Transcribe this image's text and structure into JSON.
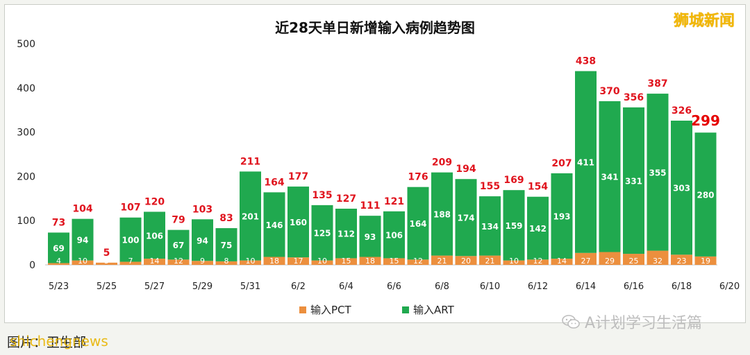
{
  "brand_label": "狮城新闻",
  "watermark_text": "A计划学习生活篇",
  "source_text": "图片：卫生部",
  "source_overlay": "shichengnews",
  "colors": {
    "art": "#20a94f",
    "pct": "#ec8f3e",
    "total_label": "#e0141e",
    "highlight_label": "#e60000"
  },
  "chart_data": {
    "type": "bar",
    "title": "近28天单日新增输入病例趋势图",
    "categories": [
      "5/23",
      "5/24",
      "5/25",
      "5/26",
      "5/27",
      "5/28",
      "5/29",
      "5/30",
      "5/31",
      "6/1",
      "6/2",
      "6/3",
      "6/4",
      "6/5",
      "6/6",
      "6/7",
      "6/8",
      "6/9",
      "6/10",
      "6/11",
      "6/12",
      "6/13",
      "6/14",
      "6/15",
      "6/16",
      "6/17",
      "6/18",
      "6/19"
    ],
    "x_tick_labels": [
      "5/23",
      "5/25",
      "5/27",
      "5/29",
      "5/31",
      "6/2",
      "6/4",
      "6/6",
      "6/8",
      "6/10",
      "6/12",
      "6/14",
      "6/16",
      "6/18",
      "6/20"
    ],
    "stacked": true,
    "series": [
      {
        "name": "输入PCT",
        "color": "#ec8f3e",
        "values": [
          4,
          10,
          5,
          7,
          14,
          12,
          9,
          8,
          10,
          18,
          17,
          10,
          15,
          18,
          15,
          12,
          21,
          20,
          21,
          10,
          12,
          14,
          27,
          29,
          25,
          32,
          23,
          19
        ]
      },
      {
        "name": "输入ART",
        "color": "#20a94f",
        "values": [
          69,
          94,
          null,
          100,
          106,
          67,
          94,
          75,
          201,
          146,
          160,
          125,
          112,
          93,
          106,
          164,
          188,
          174,
          134,
          159,
          142,
          193,
          411,
          341,
          331,
          355,
          303,
          280
        ]
      }
    ],
    "totals": [
      73,
      104,
      5,
      107,
      120,
      79,
      103,
      83,
      211,
      164,
      177,
      135,
      127,
      111,
      121,
      176,
      209,
      194,
      155,
      169,
      154,
      207,
      438,
      370,
      356,
      387,
      326,
      299
    ],
    "highlight_last_total": true,
    "ylim": [
      0,
      500
    ],
    "y_ticks": [
      0,
      100,
      200,
      300,
      400,
      500
    ],
    "grid": false,
    "legend": "bottom-center"
  }
}
